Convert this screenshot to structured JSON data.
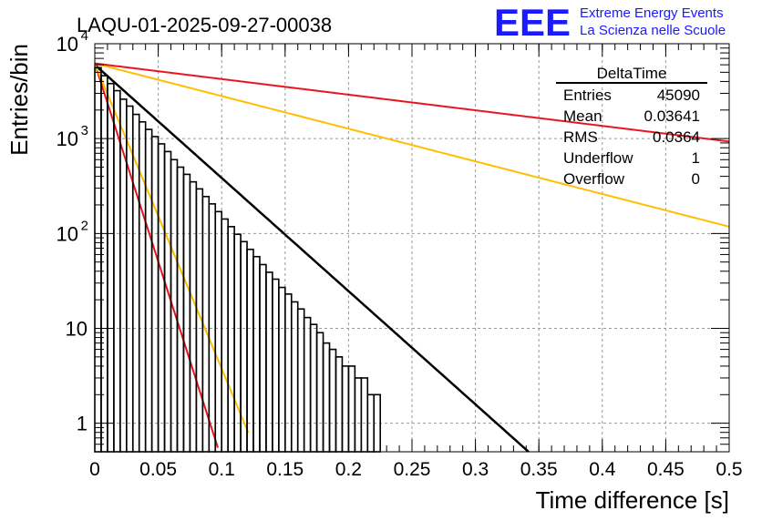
{
  "header": {
    "run_title": "LAQU-01-2025-09-27-00038",
    "logo_text": "EEE",
    "logo_line1": "Extreme Energy Events",
    "logo_line2": "La Scienza nelle Scuole"
  },
  "stats_box": {
    "title": "DeltaTime",
    "rows": [
      {
        "label": "Entries",
        "value": "45090"
      },
      {
        "label": "Mean",
        "value": "0.03641"
      },
      {
        "label": "RMS",
        "value": "0.0364"
      },
      {
        "label": "Underflow",
        "value": "1"
      },
      {
        "label": "Overflow",
        "value": "0"
      }
    ]
  },
  "colors": {
    "histogram": "#000000",
    "fit": "#000000",
    "red": "#e8141e",
    "orange": "#ffbf00",
    "grid": "#9a9a9a",
    "logo": "#1a1aff"
  },
  "chart_data": {
    "type": "line",
    "title": "LAQU-01-2025-09-27-00038",
    "xlabel": "Time difference [s]",
    "ylabel": "Entries/bin",
    "xlim": [
      0,
      0.5
    ],
    "ylim": [
      0.5,
      10000
    ],
    "yscale": "log",
    "grid": true,
    "x_ticks": [
      {
        "value": 0,
        "label": "0"
      },
      {
        "value": 0.05,
        "label": "0.05"
      },
      {
        "value": 0.1,
        "label": "0.1"
      },
      {
        "value": 0.15,
        "label": "0.15"
      },
      {
        "value": 0.2,
        "label": "0.2"
      },
      {
        "value": 0.25,
        "label": "0.25"
      },
      {
        "value": 0.3,
        "label": "0.3"
      },
      {
        "value": 0.35,
        "label": "0.35"
      },
      {
        "value": 0.4,
        "label": "0.4"
      },
      {
        "value": 0.45,
        "label": "0.45"
      },
      {
        "value": 0.5,
        "label": "0.5"
      }
    ],
    "y_ticks": [
      {
        "value": 1,
        "base": "1",
        "exp": ""
      },
      {
        "value": 10,
        "base": "10",
        "exp": ""
      },
      {
        "value": 100,
        "base": "10",
        "exp": "2"
      },
      {
        "value": 1000,
        "base": "10",
        "exp": "3"
      },
      {
        "value": 10000,
        "base": "10",
        "exp": "4"
      }
    ],
    "histogram": {
      "name": "DeltaTime",
      "bin_width": 0.005,
      "x_start": 0,
      "counts": [
        5600,
        4600,
        3800,
        3200,
        2600,
        2200,
        1800,
        1500,
        1250,
        1050,
        880,
        730,
        600,
        500,
        420,
        350,
        295,
        245,
        205,
        170,
        142,
        118,
        98,
        82,
        68,
        57,
        47,
        39,
        33,
        27,
        23,
        19,
        16,
        13,
        11,
        9,
        7,
        6,
        5,
        4,
        4,
        3,
        3,
        2,
        2,
        0,
        0,
        0,
        0,
        0,
        0,
        0,
        0,
        0,
        0,
        0,
        0,
        0,
        0,
        0,
        0,
        0,
        0,
        0,
        0,
        0,
        0,
        0,
        0,
        0,
        0,
        0,
        0,
        0,
        0,
        0,
        0,
        0,
        0,
        0,
        0,
        0,
        0,
        0,
        0,
        0,
        0,
        0,
        0,
        0,
        0,
        0,
        0,
        0,
        0,
        0,
        0,
        0,
        0,
        0
      ],
      "counts_note": "approximate"
    },
    "series": [
      {
        "name": "fit",
        "color": "#000000",
        "amplitude": 6000,
        "tau": 0.0364,
        "x_range": [
          0,
          0.345
        ]
      },
      {
        "name": "red-fast",
        "color": "#e8141e",
        "amplitude": 6200,
        "tau": 0.0104,
        "x_range": [
          0,
          0.097
        ]
      },
      {
        "name": "orange-fast",
        "color": "#ffbf00",
        "amplitude": 6200,
        "tau": 0.0135,
        "x_range": [
          0,
          0.121
        ]
      },
      {
        "name": "orange-slow",
        "color": "#ffbf00",
        "amplitude": 6200,
        "tau": 0.1262,
        "x_range": [
          0,
          0.5
        ]
      },
      {
        "name": "red-slow",
        "color": "#e8141e",
        "amplitude": 6200,
        "tau": 0.2638,
        "x_range": [
          0,
          0.5
        ]
      }
    ]
  }
}
